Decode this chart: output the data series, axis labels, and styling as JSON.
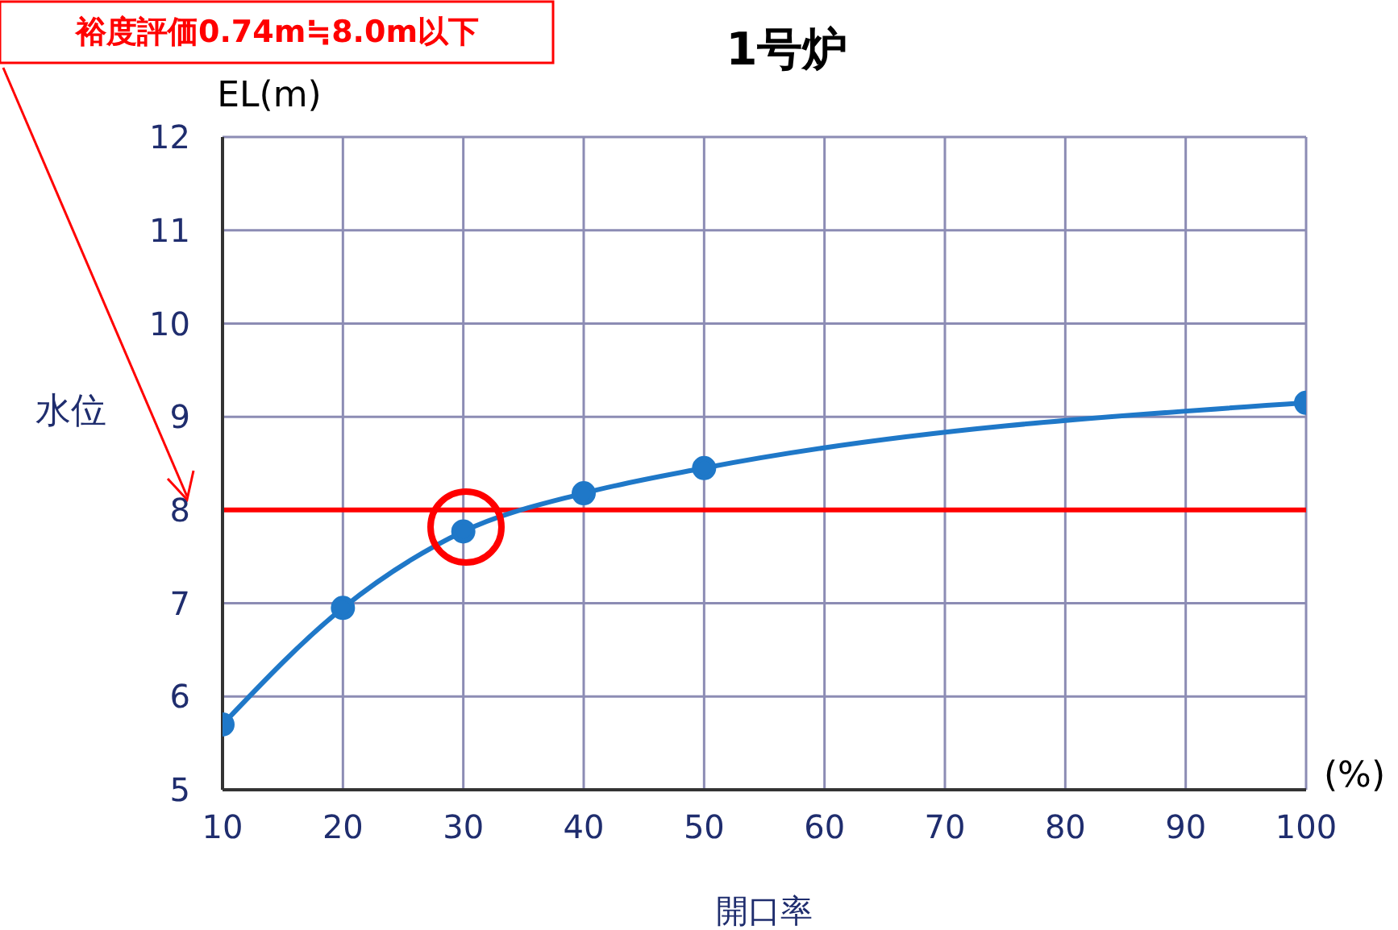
{
  "chart_data": {
    "type": "line",
    "title": "1号炉",
    "xlabel": "開口率",
    "ylabel": "水位",
    "annotations": [
      "裕度評価0.74m≒8.0m以下",
      "EL(m)",
      "(%)"
    ],
    "x": [
      10,
      20,
      30,
      40,
      50,
      100
    ],
    "series": [
      {
        "color": "#1f78c8",
        "values": [
          5.7,
          6.95,
          7.77,
          8.18,
          8.45,
          9.15
        ]
      }
    ],
    "xlim": [
      10,
      100
    ],
    "xticks": [
      10,
      20,
      30,
      40,
      50,
      60,
      70,
      80,
      90,
      100
    ],
    "ylim": [
      5,
      12
    ],
    "yticks": [
      5,
      6,
      7,
      8,
      9,
      10,
      11,
      12
    ],
    "ref_lines": [
      {
        "axis": "y",
        "value": 8,
        "color": "#ff0000"
      }
    ],
    "grid": true,
    "marker": "circle",
    "line_style": "solid"
  }
}
